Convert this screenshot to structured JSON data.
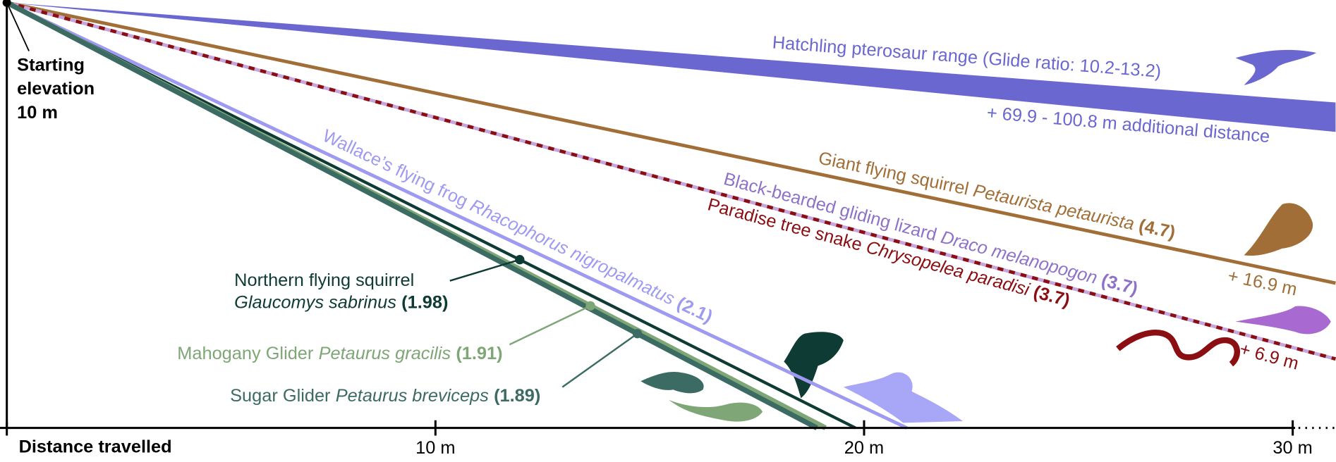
{
  "chart_data": {
    "type": "line",
    "y_label_lines": [
      "Starting",
      "elevation",
      "10 m"
    ],
    "x_label": "Distance travelled",
    "xlim": [
      0,
      31
    ],
    "ylim": [
      0,
      10
    ],
    "xticks": [
      {
        "value": 10,
        "label": "10 m"
      },
      {
        "value": 20,
        "label": "20 m"
      },
      {
        "value": 30,
        "label": "30 m"
      }
    ],
    "series": [
      {
        "name": "Hatchling pterosaur range (Glide ratio: 10.2-13.2)",
        "values": [
          10.2,
          13.2
        ],
        "color": "#6a67d0",
        "extra": "+ 69.9 - 100.8 m additional distance"
      },
      {
        "name": "Giant flying squirrel",
        "species": "Petaurista petaurista",
        "value": 4.7,
        "value_label": "(4.7)",
        "color": "#a06e36",
        "extra": "+ 16.9 m"
      },
      {
        "name": "Black-bearded gliding lizard",
        "species": "Draco melanopogon",
        "value": 3.7,
        "value_label": "(3.7)",
        "color": "#8e72c8"
      },
      {
        "name": "Paradise tree snake",
        "species": "Chrysopelea paradisi",
        "value": 3.7,
        "value_label": "(3.7)",
        "color": "#8b0e12",
        "extra": "+ 6.9 m"
      },
      {
        "name": "Wallace’s flying frog",
        "species": "Rhacophorus nigropalmatus",
        "value": 2.1,
        "value_label": "(2.1)",
        "color": "#9e9af2"
      },
      {
        "name": "Northern flying squirrel",
        "species": "Glaucomys sabrinus",
        "value": 1.98,
        "value_label": "(1.98)",
        "color": "#0e3b33"
      },
      {
        "name": "Mahogany Glider",
        "species": "Petaurus gracilis",
        "value": 1.91,
        "value_label": "(1.91)",
        "color": "#7ea676"
      },
      {
        "name": "Sugar Glider",
        "species": "Petaurus breviceps",
        "value": 1.89,
        "value_label": "(1.89)",
        "color": "#3b6b63"
      }
    ]
  }
}
